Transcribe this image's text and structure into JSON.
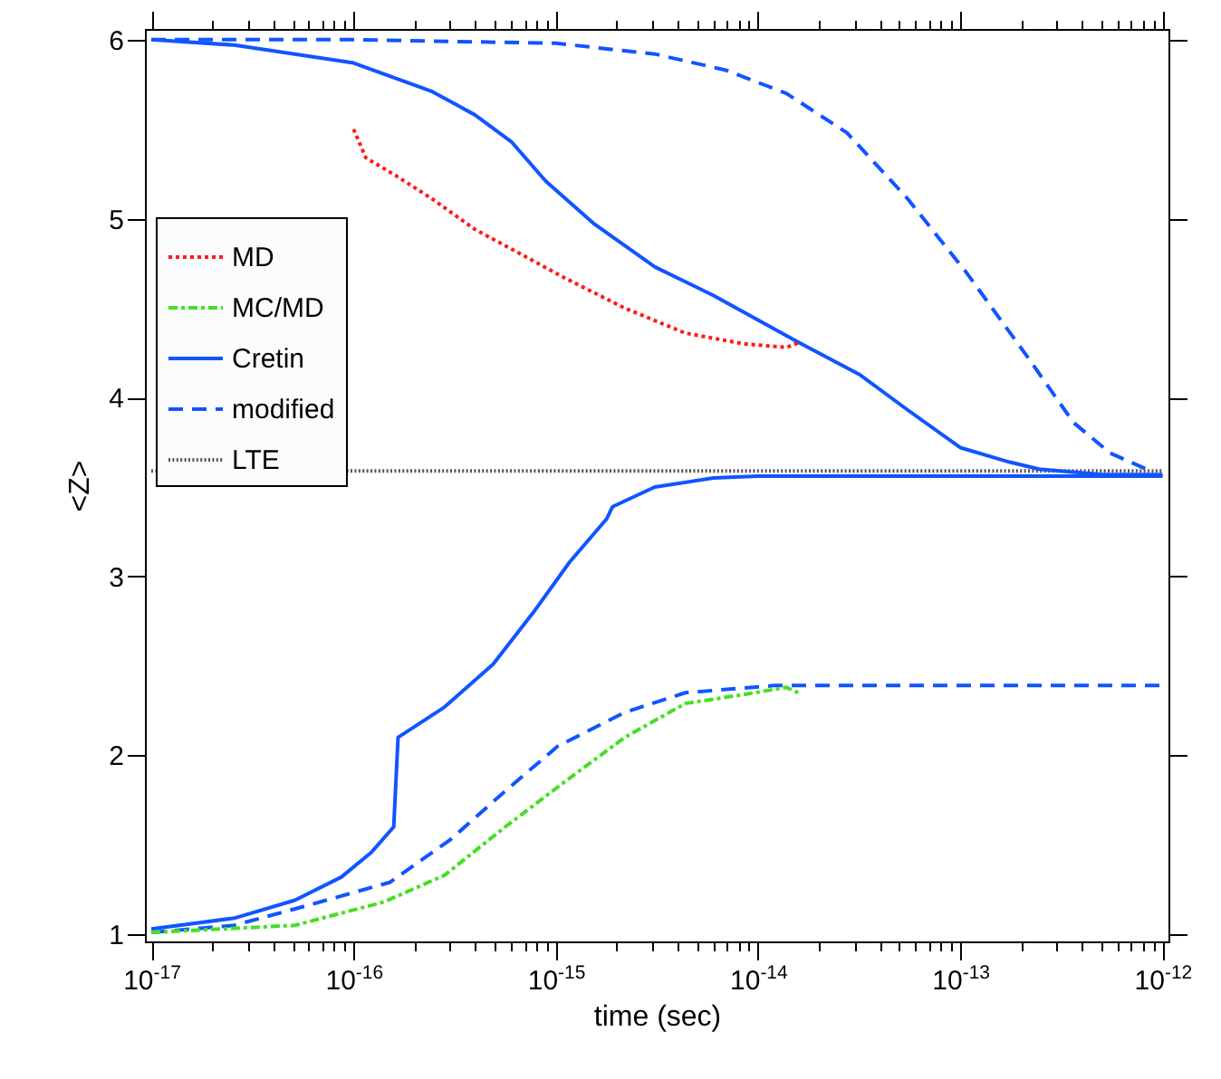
{
  "chart_data": {
    "type": "line",
    "xlabel": "time (sec)",
    "ylabel": "<Z>",
    "log": "x",
    "grid": false,
    "legend": "top left",
    "xlim": [
      9.3e-18,
      1.07e-12
    ],
    "ylim": [
      0.96,
      6.06
    ],
    "yticks": [
      1,
      2,
      3,
      4,
      5,
      6
    ],
    "xticks": [
      {
        "value": 1e-17,
        "label": "10$^{-17}$"
      },
      {
        "value": 2e-17,
        "label": null
      },
      {
        "value": 3e-17,
        "label": null
      },
      {
        "value": 4e-17,
        "label": null
      },
      {
        "value": 5e-17,
        "label": null
      },
      {
        "value": 6e-17,
        "label": null
      },
      {
        "value": 7e-17,
        "label": null
      },
      {
        "value": 8e-17,
        "label": null
      },
      {
        "value": 9e-17,
        "label": null
      },
      {
        "value": 1e-16,
        "label": "10$^{-16}$"
      },
      {
        "value": 2e-16,
        "label": null
      },
      {
        "value": 3e-16,
        "label": null
      },
      {
        "value": 4e-16,
        "label": null
      },
      {
        "value": 5e-16,
        "label": null
      },
      {
        "value": 6e-16,
        "label": null
      },
      {
        "value": 7e-16,
        "label": null
      },
      {
        "value": 8e-16,
        "label": null
      },
      {
        "value": 9e-16,
        "label": null
      },
      {
        "value": 1e-15,
        "label": "10$^{-15}$"
      },
      {
        "value": 2e-15,
        "label": null
      },
      {
        "value": 3e-15,
        "label": null
      },
      {
        "value": 4e-15,
        "label": null
      },
      {
        "value": 5e-15,
        "label": null
      },
      {
        "value": 6e-15,
        "label": null
      },
      {
        "value": 7e-15,
        "label": null
      },
      {
        "value": 8e-15,
        "label": null
      },
      {
        "value": 9e-15,
        "label": null
      },
      {
        "value": 1e-14,
        "label": "10$^{-14}$"
      },
      {
        "value": 2e-14,
        "label": null
      },
      {
        "value": 3e-14,
        "label": null
      },
      {
        "value": 4e-14,
        "label": null
      },
      {
        "value": 5e-14,
        "label": null
      },
      {
        "value": 6e-14,
        "label": null
      },
      {
        "value": 7e-14,
        "label": null
      },
      {
        "value": 8e-14,
        "label": null
      },
      {
        "value": 9e-14,
        "label": null
      },
      {
        "value": 1e-13,
        "label": "10$^{-13}$"
      },
      {
        "value": 2e-13,
        "label": null
      },
      {
        "value": 3e-13,
        "label": null
      },
      {
        "value": 4e-13,
        "label": null
      },
      {
        "value": 5e-13,
        "label": null
      },
      {
        "value": 6e-13,
        "label": null
      },
      {
        "value": 7e-13,
        "label": null
      },
      {
        "value": 8e-13,
        "label": null
      },
      {
        "value": 9e-13,
        "label": null
      },
      {
        "value": 1e-12,
        "label": "10$^{-12}$"
      }
    ],
    "series": [
      {
        "name": "MD",
        "color": "#ff1a1a",
        "line_style": "dotted",
        "x": [
          1e-16,
          1.15e-16,
          1.62e-16,
          2.45e-16,
          3.98e-16,
          6.76e-16,
          1.1e-15,
          2.19e-15,
          4.37e-15,
          8.51e-15,
          1.38e-14,
          1.62e-14
        ],
        "values": [
          5.5,
          5.34,
          5.24,
          5.11,
          4.94,
          4.8,
          4.67,
          4.5,
          4.36,
          4.3,
          4.28,
          4.31
        ]
      },
      {
        "name": "MC/MD",
        "color": "#44e022",
        "line_style": "dashdot",
        "x": [
          1e-17,
          5.13e-17,
          1.41e-16,
          2.82e-16,
          5.62e-16,
          1.1e-15,
          2.19e-15,
          4.37e-15,
          8.51e-15,
          1.38e-14,
          1.58e-14
        ],
        "values": [
          1.01,
          1.05,
          1.18,
          1.33,
          1.6,
          1.85,
          2.1,
          2.29,
          2.34,
          2.38,
          2.35
        ]
      },
      {
        "name": "Cretin",
        "color": "#1155ff",
        "line_style": "solid",
        "x": [
          1e-17,
          2.57e-17,
          1e-16,
          2.45e-16,
          3.98e-16,
          6.03e-16,
          8.91e-16,
          1.55e-15,
          3.09e-15,
          6.03e-15,
          1.58e-14,
          3.16e-14,
          5.5e-14,
          1e-13,
          1.74e-13,
          2.45e-13,
          5e-13,
          1e-12
        ],
        "values": [
          6.0,
          5.97,
          5.87,
          5.71,
          5.58,
          5.43,
          5.21,
          4.97,
          4.73,
          4.57,
          4.31,
          4.13,
          3.93,
          3.72,
          3.64,
          3.6,
          3.57,
          3.57
        ]
      },
      {
        "color": "#1155ff",
        "line_style": "solid",
        "x": [
          1e-17,
          2.57e-17,
          5.13e-17,
          8.71e-17,
          1.23e-16,
          1.58e-16,
          1.66e-16,
          2.82e-16,
          4.9e-16,
          7.76e-16,
          1.17e-15,
          1.78e-15,
          1.91e-15,
          3.09e-15,
          6.03e-15,
          1e-14,
          1e-12
        ],
        "values": [
          1.03,
          1.09,
          1.19,
          1.32,
          1.46,
          1.6,
          2.1,
          2.27,
          2.51,
          2.8,
          3.08,
          3.32,
          3.39,
          3.5,
          3.55,
          3.56,
          3.56
        ]
      },
      {
        "name": "modified",
        "color": "#1155ff",
        "line_style": "dashed",
        "x": [
          1e-17,
          1e-16,
          1e-15,
          3.09e-15,
          6.92e-15,
          1.38e-14,
          2.75e-14,
          5.5e-14,
          1.07e-13,
          2.14e-13,
          3.63e-13,
          5.5e-13,
          8.32e-13,
          8.91e-13
        ],
        "values": [
          6.0,
          6.0,
          5.98,
          5.92,
          5.83,
          5.7,
          5.48,
          5.11,
          4.7,
          4.23,
          3.86,
          3.69,
          3.6,
          3.59
        ]
      },
      {
        "color": "#1155ff",
        "line_style": "dashed",
        "x": [
          1e-17,
          2.57e-17,
          5.89e-17,
          1.51e-16,
          3.02e-16,
          5.62e-16,
          1.02e-15,
          2.19e-15,
          4.37e-15,
          1.2e-14,
          1e-12
        ],
        "values": [
          1.01,
          1.05,
          1.16,
          1.29,
          1.53,
          1.8,
          2.05,
          2.24,
          2.35,
          2.39,
          2.39
        ]
      },
      {
        "name": "LTE",
        "color": "#555555",
        "line_style": "hatched",
        "x": [
          1e-17,
          1e-12
        ],
        "values": [
          3.59,
          3.59
        ]
      }
    ]
  }
}
